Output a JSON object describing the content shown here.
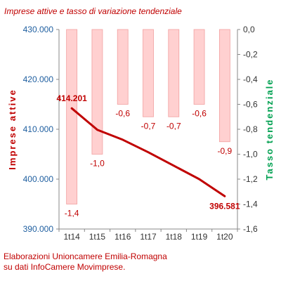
{
  "chart_data": {
    "type": "bar+line",
    "title": "Imprese attive e tasso di variazione tendenziale",
    "categories": [
      "1t14",
      "1t15",
      "1t16",
      "1t17",
      "1t18",
      "1t19",
      "1t20"
    ],
    "left_axis": {
      "label": "Imprese attive",
      "range": [
        390000,
        430000
      ],
      "ticks": [
        "390.000",
        "400.000",
        "410.000",
        "420.000",
        "430.000"
      ],
      "tick_values": [
        390000,
        400000,
        410000,
        420000,
        430000
      ],
      "color": "#c00000",
      "tick_color": "#1f5fa0"
    },
    "right_axis": {
      "label": "Tasso tendenziale",
      "range": [
        -1.6,
        0.0
      ],
      "ticks": [
        "-1,6",
        "-1,4",
        "-1,2",
        "-1,0",
        "-0,8",
        "-0,6",
        "-0,4",
        "-0,2",
        "0,0"
      ],
      "tick_values": [
        -1.6,
        -1.4,
        -1.2,
        -1.0,
        -0.8,
        -0.6,
        -0.4,
        -0.2,
        0.0
      ],
      "color": "#00a050"
    },
    "bar_series": {
      "axis": "right",
      "values": [
        -1.4,
        -1.0,
        -0.6,
        -0.7,
        -0.7,
        -0.6,
        -0.9
      ],
      "labels": [
        "-1,4",
        "-1,0",
        "-0,6",
        "-0,7",
        "-0,7",
        "-0,6",
        "-0,9"
      ],
      "fill": "#ffd0d0",
      "stroke": "#f2a0a0",
      "label_color": "#c00000"
    },
    "line_series": {
      "axis": "left",
      "values": [
        414201,
        409900,
        407900,
        405400,
        402700,
        400000,
        396581
      ],
      "color": "#c00000",
      "labels": [
        {
          "index": 0,
          "text": "414.201"
        },
        {
          "index": 6,
          "text": "396.581"
        }
      ]
    },
    "legend": "none",
    "grid": false
  },
  "footer": {
    "line1": "Elaborazioni Unioncamere Emilia-Romagna",
    "line2": "su dati InfoCamere Movimprese."
  }
}
